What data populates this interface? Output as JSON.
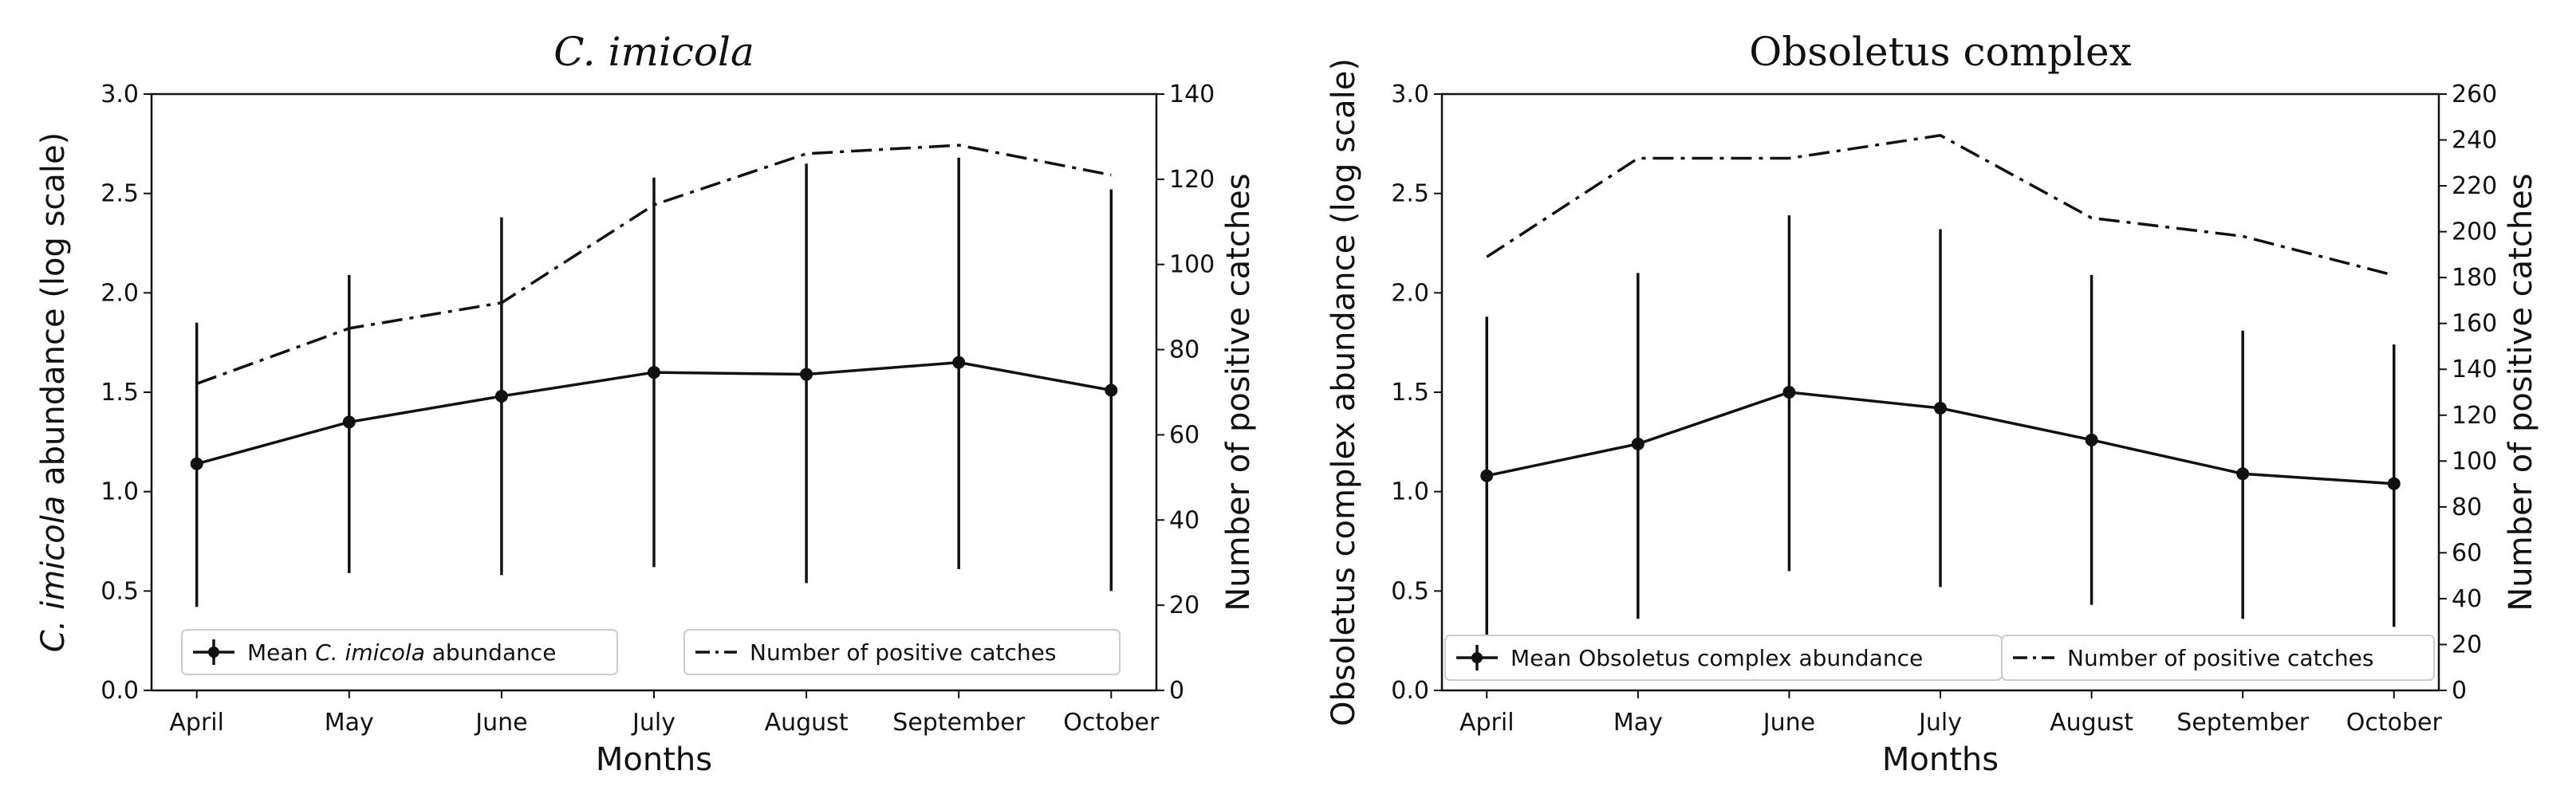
{
  "chart_data": [
    {
      "type": "line",
      "title_italic": "C. imicola",
      "title_normal": "",
      "xlabel": "Months",
      "ylabel_italic": "C. imicola",
      "ylabel_rest": " abundance (log scale)",
      "ylabel_right": "Number of positive catches",
      "categories": [
        "April",
        "May",
        "June",
        "July",
        "August",
        "September",
        "October"
      ],
      "ylim": [
        0,
        3.0
      ],
      "yticks": [
        "0.0",
        "0.5",
        "1.0",
        "1.5",
        "2.0",
        "2.5",
        "3.0"
      ],
      "ylim_right": [
        0,
        140
      ],
      "yticks_right": [
        "0",
        "20",
        "40",
        "60",
        "80",
        "100",
        "120",
        "140"
      ],
      "series": [
        {
          "name": "Mean C. imicola abundance",
          "legend_prefix": "Mean ",
          "legend_italic": "C. imicola",
          "legend_suffix": " abundance",
          "axis": "left",
          "style": "solid-marker",
          "values": [
            1.14,
            1.35,
            1.48,
            1.6,
            1.59,
            1.65,
            1.51
          ],
          "err_low": [
            0.42,
            0.59,
            0.58,
            0.62,
            0.54,
            0.61,
            0.5
          ],
          "err_high": [
            1.85,
            2.09,
            2.38,
            2.58,
            2.65,
            2.68,
            2.52
          ]
        },
        {
          "name": "Number of positive catches",
          "axis": "right",
          "style": "dashdot",
          "values": [
            72,
            85,
            91,
            114,
            126,
            128,
            121
          ]
        }
      ]
    },
    {
      "type": "line",
      "title_italic": "",
      "title_normal": "Obsoletus complex",
      "xlabel": "Months",
      "ylabel_italic": "",
      "ylabel_rest": "Obsoletus complex abundance (log scale)",
      "ylabel_right": "Number of positive catches",
      "categories": [
        "April",
        "May",
        "June",
        "July",
        "August",
        "September",
        "October"
      ],
      "ylim": [
        0,
        3.0
      ],
      "yticks": [
        "0.0",
        "0.5",
        "1.0",
        "1.5",
        "2.0",
        "2.5",
        "3.0"
      ],
      "ylim_right": [
        0,
        260
      ],
      "yticks_right": [
        "0",
        "20",
        "40",
        "60",
        "80",
        "100",
        "120",
        "140",
        "160",
        "180",
        "200",
        "220",
        "240",
        "260"
      ],
      "series": [
        {
          "name": "Mean Obsoletus complex abundance",
          "legend_prefix": "Mean Obsoletus complex abundance",
          "legend_italic": "",
          "legend_suffix": "",
          "axis": "left",
          "style": "solid-marker",
          "values": [
            1.08,
            1.24,
            1.5,
            1.42,
            1.26,
            1.09,
            1.04
          ],
          "err_low": [
            0.26,
            0.36,
            0.6,
            0.52,
            0.43,
            0.36,
            0.32
          ],
          "err_high": [
            1.88,
            2.1,
            2.39,
            2.32,
            2.09,
            1.81,
            1.74
          ]
        },
        {
          "name": "Number of positive catches",
          "axis": "right",
          "style": "dashdot",
          "values": [
            189,
            232,
            232,
            242,
            206,
            198,
            181
          ]
        }
      ]
    }
  ]
}
